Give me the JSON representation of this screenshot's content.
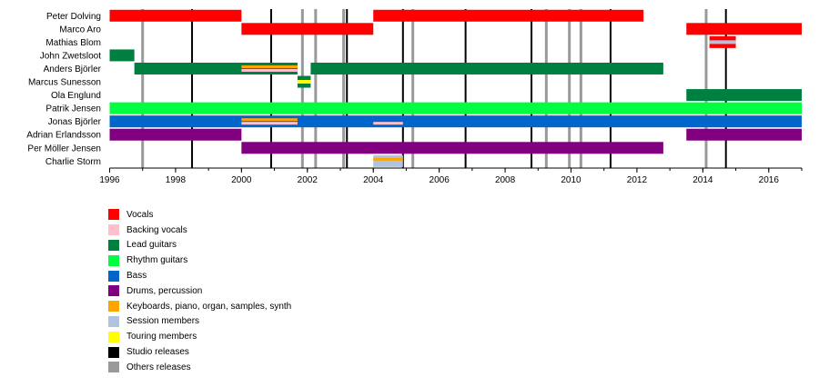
{
  "chart_data": {
    "type": "timeline",
    "x_range": [
      1996,
      2017
    ],
    "x_ticks": [
      "1996",
      "1998",
      "2000",
      "2002",
      "2004",
      "2006",
      "2008",
      "2010",
      "2012",
      "2014",
      "2016"
    ],
    "members": [
      "Peter Dolving",
      "Marco Aro",
      "Mathias Blom",
      "John Zwetsloot",
      "Anders Björler",
      "Marcus Sunesson",
      "Ola Englund",
      "Patrik Jensen",
      "Jonas Björler",
      "Adrian Erlandsson",
      "Per Möller Jensen",
      "Charlie Storm"
    ],
    "roles": [
      {
        "key": "vocals",
        "label": "Vocals",
        "color": "#ff0000"
      },
      {
        "key": "backing",
        "label": "Backing vocals",
        "color": "#ffc0cb"
      },
      {
        "key": "lead",
        "label": "Lead guitars",
        "color": "#008040"
      },
      {
        "key": "rhythm",
        "label": "Rhythm guitars",
        "color": "#00ff40"
      },
      {
        "key": "bass",
        "label": "Bass",
        "color": "#0066cc"
      },
      {
        "key": "drums",
        "label": "Drums, percussion",
        "color": "#800080"
      },
      {
        "key": "keys",
        "label": "Keyboards, piano, organ, samples, synth",
        "color": "#ffa500"
      },
      {
        "key": "session",
        "label": "Session members",
        "color": "#b0c4de"
      },
      {
        "key": "touring",
        "label": "Touring members",
        "color": "#ffff00"
      },
      {
        "key": "studio",
        "label": "Studio releases",
        "color": "#000000"
      },
      {
        "key": "others",
        "label": "Others releases",
        "color": "#999999"
      }
    ],
    "bars": [
      {
        "member": 0,
        "role": "vocals",
        "start": 1996,
        "end": 2000
      },
      {
        "member": 0,
        "role": "vocals",
        "start": 2004,
        "end": 2012.2
      },
      {
        "member": 1,
        "role": "vocals",
        "start": 2000,
        "end": 2004
      },
      {
        "member": 1,
        "role": "vocals",
        "start": 2013.5,
        "end": 2017
      },
      {
        "member": 2,
        "role": "vocals",
        "start": 2014.2,
        "end": 2015
      },
      {
        "member": 3,
        "role": "lead",
        "start": 1996,
        "end": 1996.75
      },
      {
        "member": 4,
        "role": "lead",
        "start": 1996.75,
        "end": 2001.7
      },
      {
        "member": 4,
        "role": "lead",
        "start": 2002.1,
        "end": 2012.8
      },
      {
        "member": 5,
        "role": "lead",
        "start": 2001.7,
        "end": 2002.1
      },
      {
        "member": 6,
        "role": "lead",
        "start": 2013.5,
        "end": 2017
      },
      {
        "member": 7,
        "role": "rhythm",
        "start": 1996,
        "end": 2017
      },
      {
        "member": 8,
        "role": "bass",
        "start": 1996,
        "end": 2017
      },
      {
        "member": 9,
        "role": "drums",
        "start": 1996,
        "end": 2000
      },
      {
        "member": 9,
        "role": "drums",
        "start": 2013.5,
        "end": 2017
      },
      {
        "member": 10,
        "role": "drums",
        "start": 2000,
        "end": 2012.8
      },
      {
        "member": 11,
        "role": "session",
        "start": 2004,
        "end": 2004.9
      }
    ],
    "overlays": [
      {
        "member": 2,
        "role": "session",
        "start": 2014.2,
        "end": 2015
      },
      {
        "member": 4,
        "role": "keys",
        "start": 2000,
        "end": 2001.7
      },
      {
        "member": 4,
        "role": "backing",
        "start": 2000,
        "end": 2001.7
      },
      {
        "member": 5,
        "role": "touring",
        "start": 2001.7,
        "end": 2002.1
      },
      {
        "member": 8,
        "role": "keys",
        "start": 2000,
        "end": 2001.7
      },
      {
        "member": 8,
        "role": "backing",
        "start": 2000,
        "end": 2001.7
      },
      {
        "member": 8,
        "role": "backing",
        "start": 2004,
        "end": 2004.9
      },
      {
        "member": 11,
        "role": "keys",
        "start": 2004,
        "end": 2004.9
      }
    ],
    "studio_releases": [
      1998.5,
      2000.9,
      2003.2,
      2004.9,
      2006.8,
      2008.8,
      2011.2,
      2014.7
    ],
    "other_releases": [
      1997,
      2001.85,
      2002.25,
      2003.1,
      2005.2,
      2009.25,
      2009.95,
      2010.3,
      2014.1
    ]
  }
}
